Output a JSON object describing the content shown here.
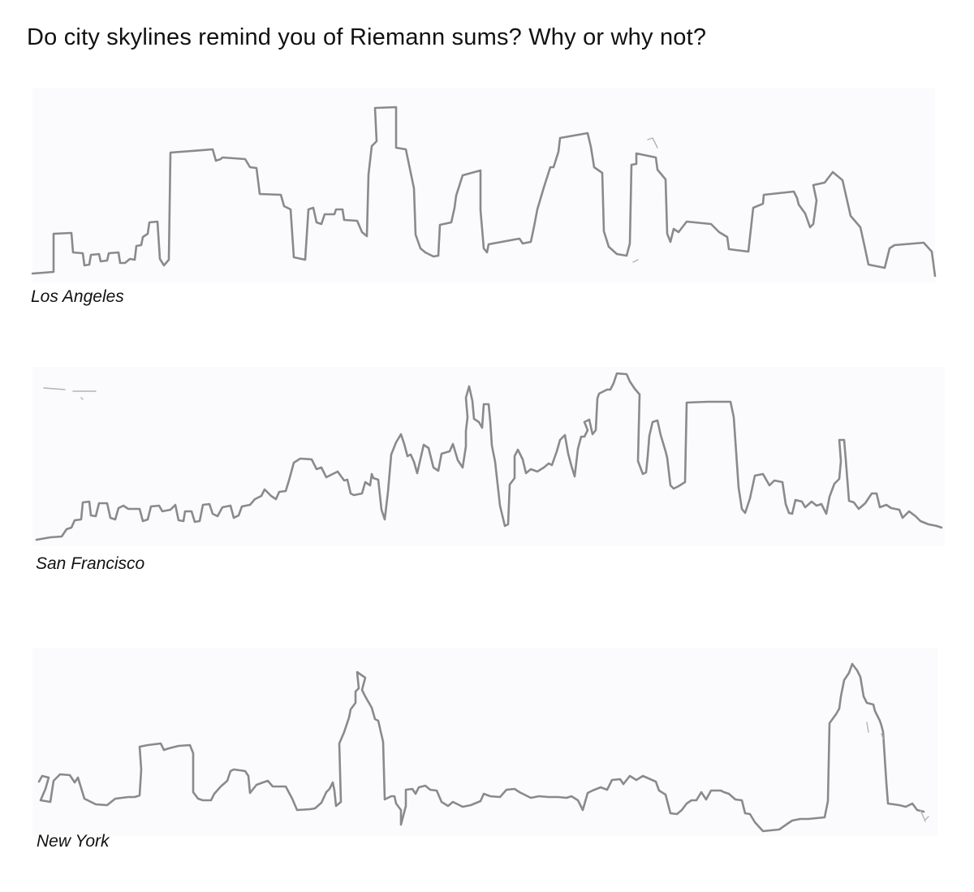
{
  "prompt": "Do city skylines remind you of Riemann sums? Why or why not?",
  "skylines": [
    {
      "city": "Los Angeles",
      "drawing": "pencil-skyline-outline"
    },
    {
      "city": "San Francisco",
      "drawing": "pencil-skyline-outline"
    },
    {
      "city": "New York",
      "drawing": "pencil-skyline-outline"
    }
  ],
  "colors": {
    "background": "#ffffff",
    "panel": "#fbfbfd",
    "pencil": "#8a8a8a",
    "text": "#111111"
  }
}
